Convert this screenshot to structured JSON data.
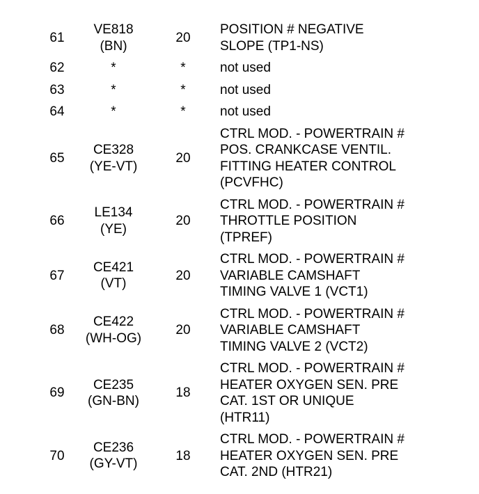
{
  "rows": [
    {
      "pin": "61",
      "wire": "VE818\n(BN)",
      "size": "20",
      "desc": "POSITION # NEGATIVE\nSLOPE (TP1-NS)"
    },
    {
      "pin": "62",
      "wire": "*",
      "size": "*",
      "desc": "not used"
    },
    {
      "pin": "63",
      "wire": "*",
      "size": "*",
      "desc": "not used"
    },
    {
      "pin": "64",
      "wire": "*",
      "size": "*",
      "desc": "not used"
    },
    {
      "pin": "65",
      "wire": "CE328\n(YE-VT)",
      "size": "20",
      "desc": "CTRL MOD. - POWERTRAIN #\nPOS. CRANKCASE VENTIL.\nFITTING HEATER CONTROL\n(PCVFHC)"
    },
    {
      "pin": "66",
      "wire": "LE134\n(YE)",
      "size": "20",
      "desc": "CTRL MOD. - POWERTRAIN #\nTHROTTLE POSITION\n(TPREF)"
    },
    {
      "pin": "67",
      "wire": "CE421\n(VT)",
      "size": "20",
      "desc": "CTRL MOD. - POWERTRAIN #\nVARIABLE CAMSHAFT\nTIMING VALVE 1 (VCT1)"
    },
    {
      "pin": "68",
      "wire": "CE422\n(WH-OG)",
      "size": "20",
      "desc": "CTRL MOD. - POWERTRAIN #\nVARIABLE CAMSHAFT\nTIMING VALVE 2 (VCT2)"
    },
    {
      "pin": "69",
      "wire": "CE235\n(GN-BN)",
      "size": "18",
      "desc": "CTRL MOD. - POWERTRAIN #\nHEATER OXYGEN SEN. PRE\nCAT. 1ST OR UNIQUE\n(HTR11)"
    },
    {
      "pin": "70",
      "wire": "CE236\n(GY-VT)",
      "size": "18",
      "desc": "CTRL MOD. - POWERTRAIN #\nHEATER OXYGEN SEN. PRE\nCAT. 2ND (HTR21)"
    }
  ]
}
